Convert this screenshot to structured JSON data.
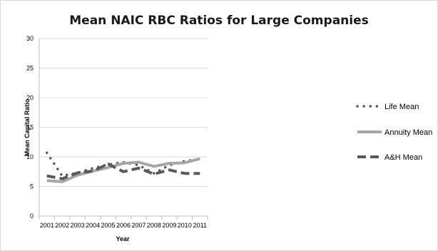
{
  "chart_data": {
    "type": "line",
    "title": "Mean NAIC RBC Ratios for Large Companies",
    "xlabel": "Year",
    "ylabel": "Mean Capital Ratio",
    "categories": [
      "2001",
      "2002",
      "2003",
      "2004",
      "2005",
      "2006",
      "2007",
      "2008",
      "2009",
      "2010",
      "2011"
    ],
    "ylim": [
      0,
      30
    ],
    "yticks": [
      0,
      5,
      10,
      15,
      20,
      25,
      30
    ],
    "grid": true,
    "legend_position": "right",
    "series": [
      {
        "name": "Life Mean",
        "style": "dotted",
        "color": "#595959",
        "values": [
          10.7,
          6.8,
          7.3,
          8.1,
          8.7,
          9.1,
          8.6,
          7.2,
          8.6,
          9.3,
          9.6
        ]
      },
      {
        "name": "Annuity Mean",
        "style": "solid",
        "color": "#a6a6a6",
        "values": [
          6.0,
          5.8,
          6.9,
          7.6,
          8.2,
          8.9,
          9.1,
          8.4,
          8.9,
          9.0,
          9.7
        ]
      },
      {
        "name": "A&H Mean",
        "style": "dashed",
        "color": "#595959",
        "values": [
          6.8,
          6.3,
          7.3,
          7.6,
          8.8,
          7.5,
          8.1,
          7.1,
          7.8,
          7.2,
          7.2
        ]
      }
    ]
  }
}
